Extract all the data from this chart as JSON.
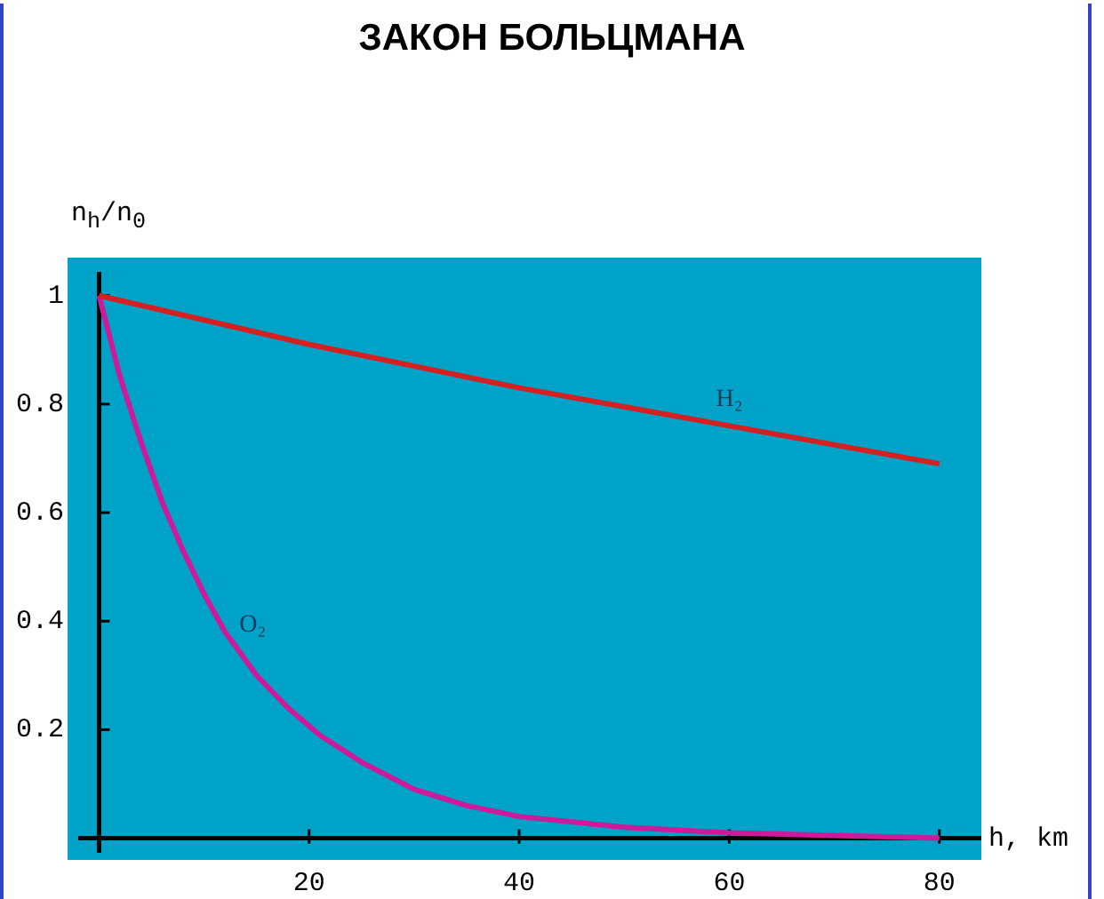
{
  "chart_data": {
    "type": "line",
    "title": "ЗАКОН БОЛЬЦМАНА",
    "xlabel": "h, km",
    "ylabel": "n$_{h}$/n$_{0}$",
    "xlim": [
      -3,
      84
    ],
    "ylim": [
      -0.04,
      1.07
    ],
    "xticks": [
      20,
      40,
      60,
      80
    ],
    "yticks": [
      0.2,
      0.4,
      0.6,
      0.8,
      1
    ],
    "grid": false,
    "legend": false,
    "marker": "none",
    "line_style": "solid",
    "series": [
      {
        "name": "H₂",
        "color": "#d42020",
        "x": [
          0,
          20,
          40,
          60,
          80
        ],
        "values": [
          1,
          0.91,
          0.83,
          0.76,
          0.69
        ]
      },
      {
        "name": "O₂",
        "color": "#cc1a9a",
        "x": [
          0,
          2,
          4,
          6,
          8,
          10,
          12,
          15,
          18,
          21,
          25,
          30,
          35,
          40,
          50,
          60,
          70,
          80
        ],
        "values": [
          1,
          0.85,
          0.73,
          0.62,
          0.53,
          0.45,
          0.38,
          0.3,
          0.24,
          0.19,
          0.14,
          0.09,
          0.06,
          0.04,
          0.02,
          0.01,
          0.005,
          0
        ]
      }
    ]
  }
}
